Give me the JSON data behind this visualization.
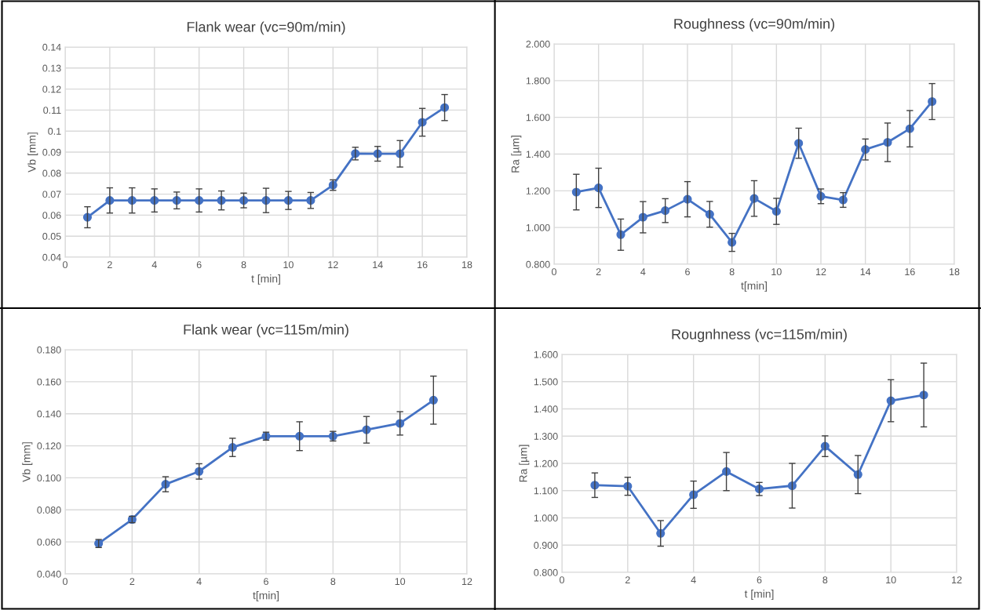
{
  "chart_data": [
    {
      "type": "line",
      "title": "Flank wear (vc=90m/min)",
      "xlabel": "t [min]",
      "ylabel": "Vb [mm]",
      "x": [
        1,
        2,
        3,
        4,
        5,
        6,
        7,
        8,
        9,
        10,
        11,
        12,
        13,
        14,
        15,
        16,
        17
      ],
      "series": [
        {
          "color": "#4472c4",
          "values": [
            0.059,
            0.067,
            0.067,
            0.067,
            0.067,
            0.067,
            0.067,
            0.067,
            0.067,
            0.067,
            0.067,
            0.0743,
            0.0893,
            0.0892,
            0.0892,
            0.1042,
            0.1112
          ],
          "errors": [
            0.005,
            0.006,
            0.006,
            0.0055,
            0.004,
            0.0055,
            0.0045,
            0.0035,
            0.0058,
            0.0043,
            0.0038,
            0.0025,
            0.003,
            0.0035,
            0.0063,
            0.0066,
            0.0062
          ]
        }
      ],
      "xlim": [
        0,
        18
      ],
      "xticks": [
        0,
        2,
        4,
        6,
        8,
        10,
        12,
        14,
        16,
        18
      ],
      "ylim": [
        0.04,
        0.14
      ],
      "yticks": [
        0.04,
        0.05,
        0.06,
        0.07,
        0.08,
        0.09,
        0.1,
        0.11,
        0.12,
        0.13,
        0.14
      ],
      "grid": true,
      "marker": "circle",
      "line_style": "solid"
    },
    {
      "type": "line",
      "title": "Roughness (vc=90m/min)",
      "xlabel": "t[min]",
      "ylabel": "Ra [µm]",
      "x": [
        1,
        2,
        3,
        4,
        5,
        6,
        7,
        8,
        9,
        10,
        11,
        12,
        13,
        14,
        15,
        16,
        17
      ],
      "series": [
        {
          "color": "#4472c4",
          "values": [
            1.193,
            1.216,
            0.961,
            1.056,
            1.092,
            1.154,
            1.072,
            0.919,
            1.158,
            1.088,
            1.459,
            1.17,
            1.15,
            1.425,
            1.464,
            1.538,
            1.686
          ],
          "errors": [
            0.097,
            0.107,
            0.085,
            0.085,
            0.065,
            0.096,
            0.07,
            0.049,
            0.097,
            0.071,
            0.082,
            0.04,
            0.04,
            0.057,
            0.105,
            0.099,
            0.098
          ]
        }
      ],
      "xlim": [
        0,
        18
      ],
      "xticks": [
        0,
        2,
        4,
        6,
        8,
        10,
        12,
        14,
        16,
        18
      ],
      "ylim": [
        0.8,
        2.0
      ],
      "yticks": [
        {
          "value": 0.8,
          "label": "0.800"
        },
        {
          "value": 1.0,
          "label": "1.000"
        },
        {
          "value": 1.2,
          "label": "1.200"
        },
        {
          "value": 1.4,
          "label": "1.400"
        },
        {
          "value": 1.6,
          "label": "1.600"
        },
        {
          "value": 1.8,
          "label": "1.800"
        },
        {
          "value": 2.0,
          "label": "2.000"
        }
      ],
      "grid": true,
      "marker": "circle",
      "line_style": "solid"
    },
    {
      "type": "line",
      "title": "Flank wear (vc=115m/min)",
      "xlabel": "t[min]",
      "ylabel": "Vb [mm]",
      "x": [
        1,
        2,
        3,
        4,
        5,
        6,
        7,
        8,
        9,
        10,
        11
      ],
      "series": [
        {
          "color": "#4472c4",
          "values": [
            0.059,
            0.074,
            0.096,
            0.104,
            0.119,
            0.126,
            0.126,
            0.126,
            0.13,
            0.134,
            0.1485
          ],
          "errors": [
            0.0025,
            0.002,
            0.0047,
            0.0048,
            0.0057,
            0.0025,
            0.009,
            0.003,
            0.0083,
            0.0073,
            0.015
          ]
        }
      ],
      "xlim": [
        0,
        12
      ],
      "xticks": [
        0,
        2,
        4,
        6,
        8,
        10,
        12
      ],
      "ylim": [
        0.04,
        0.18
      ],
      "yticks": [
        {
          "value": 0.04,
          "label": "0.040"
        },
        {
          "value": 0.06,
          "label": "0.060"
        },
        {
          "value": 0.08,
          "label": "0.080"
        },
        {
          "value": 0.1,
          "label": "0.100"
        },
        {
          "value": 0.12,
          "label": "0.120"
        },
        {
          "value": 0.14,
          "label": "0.140"
        },
        {
          "value": 0.16,
          "label": "0.160"
        },
        {
          "value": 0.18,
          "label": "0.180"
        }
      ],
      "grid": true,
      "marker": "circle",
      "line_style": "solid"
    },
    {
      "type": "line",
      "title": "Rougnhness (vc=115m/min)",
      "xlabel": "t [min]",
      "ylabel": "Ra [µm]",
      "x": [
        1,
        2,
        3,
        4,
        5,
        6,
        7,
        8,
        9,
        10,
        11
      ],
      "series": [
        {
          "color": "#4472c4",
          "values": [
            1.12,
            1.116,
            0.943,
            1.085,
            1.17,
            1.106,
            1.118,
            1.263,
            1.159,
            1.43,
            1.451
          ],
          "errors": [
            0.045,
            0.033,
            0.047,
            0.05,
            0.07,
            0.024,
            0.082,
            0.038,
            0.07,
            0.077,
            0.117
          ]
        }
      ],
      "xlim": [
        0,
        12
      ],
      "xticks": [
        0,
        2,
        4,
        6,
        8,
        10,
        12
      ],
      "ylim": [
        0.8,
        1.6
      ],
      "yticks": [
        {
          "value": 0.8,
          "label": "0.800"
        },
        {
          "value": 0.9,
          "label": "0.900"
        },
        {
          "value": 1.0,
          "label": "1.000"
        },
        {
          "value": 1.1,
          "label": "1.100"
        },
        {
          "value": 1.2,
          "label": "1.200"
        },
        {
          "value": 1.3,
          "label": "1.300"
        },
        {
          "value": 1.4,
          "label": "1.400"
        },
        {
          "value": 1.5,
          "label": "1.500"
        },
        {
          "value": 1.6,
          "label": "1.600"
        }
      ],
      "grid": true,
      "marker": "circle",
      "line_style": "solid"
    }
  ]
}
